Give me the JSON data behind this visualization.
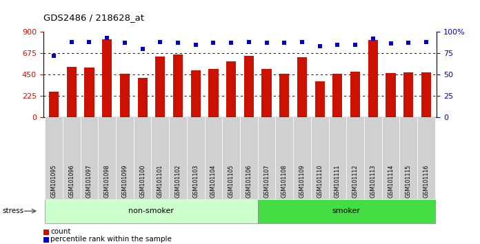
{
  "title": "GDS2486 / 218628_at",
  "samples": [
    "GSM101095",
    "GSM101096",
    "GSM101097",
    "GSM101098",
    "GSM101099",
    "GSM101100",
    "GSM101101",
    "GSM101102",
    "GSM101103",
    "GSM101104",
    "GSM101105",
    "GSM101106",
    "GSM101107",
    "GSM101108",
    "GSM101109",
    "GSM101110",
    "GSM101111",
    "GSM101112",
    "GSM101113",
    "GSM101114",
    "GSM101115",
    "GSM101116"
  ],
  "counts": [
    270,
    530,
    525,
    820,
    455,
    415,
    640,
    660,
    490,
    510,
    590,
    645,
    505,
    455,
    630,
    380,
    460,
    480,
    810,
    465,
    468,
    470
  ],
  "percentiles": [
    72,
    88,
    88,
    93,
    87,
    80,
    88,
    87,
    85,
    87,
    87,
    88,
    87,
    87,
    88,
    83,
    85,
    85,
    92,
    86,
    87,
    88
  ],
  "non_smoker_count": 12,
  "smoker_count": 10,
  "bar_color": "#cc1100",
  "dot_color": "#0000cc",
  "ylim_left": [
    0,
    900
  ],
  "ylim_right": [
    0,
    100
  ],
  "yticks_left": [
    0,
    225,
    450,
    675,
    900
  ],
  "yticks_right": [
    0,
    25,
    50,
    75,
    100
  ],
  "grid_values": [
    225,
    450,
    675
  ],
  "non_smoker_color": "#ccffcc",
  "smoker_color": "#44dd44",
  "stress_label": "stress",
  "non_smoker_label": "non-smoker",
  "smoker_label": "smoker",
  "legend_count_label": "count",
  "legend_pct_label": "percentile rank within the sample",
  "background_color": "#ffffff",
  "tick_label_bg": "#d0d0d0"
}
